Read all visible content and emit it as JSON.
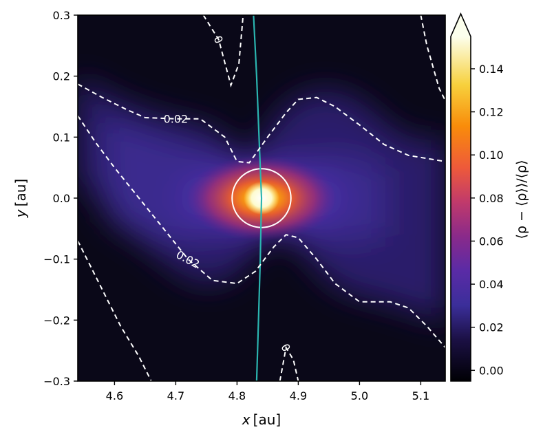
{
  "chart_data": {
    "type": "heatmap",
    "title": "",
    "xlabel_var": "x",
    "xlabel_unit": "[au]",
    "ylabel_var": "y",
    "ylabel_unit": "[au]",
    "xlim": [
      4.54,
      5.14
    ],
    "ylim": [
      -0.3,
      0.3
    ],
    "xticks": [
      4.6,
      4.7,
      4.8,
      4.9,
      5.0,
      5.1
    ],
    "xtick_labels": [
      "4.6",
      "4.7",
      "4.8",
      "4.9",
      "5.0",
      "5.1"
    ],
    "yticks": [
      -0.3,
      -0.2,
      -0.1,
      0.0,
      0.1,
      0.2,
      0.3
    ],
    "ytick_labels": [
      "−0.3",
      "−0.2",
      "−0.1",
      "0.0",
      "0.1",
      "0.2",
      "0.3"
    ],
    "colorbar": {
      "label": "⟨ρ − ⟨ρ⟩⟩/⟨ρ⟩",
      "vmin": -0.005,
      "vmax": 0.155,
      "extend": "max",
      "colormap": "inferno-like",
      "ticks": [
        0.0,
        0.02,
        0.04,
        0.06,
        0.08,
        0.1,
        0.12,
        0.14
      ],
      "tick_labels": [
        "0.00",
        "0.02",
        "0.04",
        "0.06",
        "0.08",
        "0.10",
        "0.12",
        "0.14"
      ]
    },
    "planet": {
      "x": 4.84,
      "y": 0.0,
      "circle_radius": 0.048
    },
    "contours": [
      {
        "level_label": "0.02",
        "points": [
          [
            4.54,
            0.187
          ],
          [
            4.58,
            0.165
          ],
          [
            4.62,
            0.145
          ],
          [
            4.65,
            0.132
          ],
          [
            4.7,
            0.13
          ],
          [
            4.74,
            0.13
          ],
          [
            4.78,
            0.1
          ],
          [
            4.8,
            0.06
          ],
          [
            4.82,
            0.058
          ],
          [
            4.85,
            0.1
          ],
          [
            4.88,
            0.14
          ],
          [
            4.9,
            0.162
          ],
          [
            4.93,
            0.165
          ],
          [
            4.96,
            0.15
          ],
          [
            5.0,
            0.12
          ],
          [
            5.04,
            0.088
          ],
          [
            5.08,
            0.07
          ],
          [
            5.11,
            0.065
          ],
          [
            5.14,
            0.06
          ]
        ]
      },
      {
        "level_label": "0.02",
        "points": [
          [
            4.54,
            0.135
          ],
          [
            4.57,
            0.09
          ],
          [
            4.6,
            0.05
          ],
          [
            4.64,
            0.0
          ],
          [
            4.68,
            -0.05
          ],
          [
            4.72,
            -0.1
          ],
          [
            4.76,
            -0.135
          ],
          [
            4.8,
            -0.14
          ],
          [
            4.83,
            -0.12
          ],
          [
            4.86,
            -0.08
          ],
          [
            4.88,
            -0.06
          ],
          [
            4.9,
            -0.065
          ],
          [
            4.93,
            -0.1
          ],
          [
            4.96,
            -0.14
          ],
          [
            5.0,
            -0.17
          ],
          [
            5.05,
            -0.17
          ],
          [
            5.08,
            -0.18
          ],
          [
            5.11,
            -0.21
          ],
          [
            5.14,
            -0.245
          ]
        ]
      },
      {
        "level_label": "0",
        "points": [
          [
            4.745,
            0.3
          ],
          [
            4.77,
            0.26
          ],
          [
            4.79,
            0.185
          ],
          [
            4.803,
            0.22
          ],
          [
            4.81,
            0.3
          ]
        ]
      },
      {
        "level_label": "0",
        "points": [
          [
            4.87,
            -0.3
          ],
          [
            4.88,
            -0.245
          ],
          [
            4.892,
            -0.265
          ],
          [
            4.9,
            -0.3
          ]
        ]
      },
      {
        "level_label": "",
        "points": [
          [
            4.54,
            -0.07
          ],
          [
            4.56,
            -0.11
          ],
          [
            4.58,
            -0.15
          ],
          [
            4.61,
            -0.21
          ],
          [
            4.64,
            -0.26
          ],
          [
            4.66,
            -0.3
          ]
        ]
      },
      {
        "level_label": "",
        "points": [
          [
            5.1,
            0.3
          ],
          [
            5.11,
            0.25
          ],
          [
            5.13,
            0.18
          ],
          [
            5.14,
            0.16
          ]
        ]
      }
    ],
    "streamline": {
      "color": "#2bb5b0",
      "points": [
        [
          4.827,
          0.3
        ],
        [
          4.832,
          0.2
        ],
        [
          4.836,
          0.1
        ],
        [
          4.84,
          0.0
        ],
        [
          4.838,
          -0.1
        ],
        [
          4.835,
          -0.2
        ],
        [
          4.832,
          -0.3
        ]
      ]
    }
  }
}
